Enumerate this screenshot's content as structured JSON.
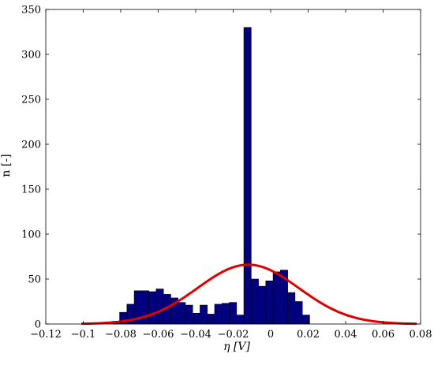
{
  "chart_data": {
    "type": "bar",
    "title": "",
    "xlabel": "η [V]",
    "ylabel": "n [-]",
    "xlim": [
      -0.12,
      0.08
    ],
    "ylim": [
      0,
      350
    ],
    "xticks": [
      "−0.12",
      "−0.1",
      "−0.08",
      "−0.06",
      "−0.04",
      "−0.02",
      "0",
      "0.02",
      "0.04",
      "0.06",
      "0.08"
    ],
    "xtick_values": [
      -0.12,
      -0.1,
      -0.08,
      -0.06,
      -0.04,
      -0.02,
      0,
      0.02,
      0.04,
      0.06,
      0.08
    ],
    "yticks": [
      "0",
      "50",
      "100",
      "150",
      "200",
      "250",
      "300",
      "350"
    ],
    "ytick_values": [
      0,
      50,
      100,
      150,
      200,
      250,
      300,
      350
    ],
    "grid": false,
    "legend": "none",
    "bin_width": 0.0039,
    "bins": [
      {
        "left": -0.0845,
        "count": 3
      },
      {
        "left": -0.0806,
        "count": 13
      },
      {
        "left": -0.0767,
        "count": 22
      },
      {
        "left": -0.0728,
        "count": 37
      },
      {
        "left": -0.0689,
        "count": 37
      },
      {
        "left": -0.065,
        "count": 36
      },
      {
        "left": -0.0611,
        "count": 39
      },
      {
        "left": -0.0572,
        "count": 33
      },
      {
        "left": -0.0533,
        "count": 29
      },
      {
        "left": -0.0494,
        "count": 24
      },
      {
        "left": -0.0455,
        "count": 21
      },
      {
        "left": -0.0416,
        "count": 12
      },
      {
        "left": -0.0377,
        "count": 21
      },
      {
        "left": -0.0338,
        "count": 11
      },
      {
        "left": -0.0299,
        "count": 22
      },
      {
        "left": -0.026,
        "count": 23
      },
      {
        "left": -0.0221,
        "count": 24
      },
      {
        "left": -0.0182,
        "count": 10
      },
      {
        "left": -0.0143,
        "count": 330
      },
      {
        "left": -0.0104,
        "count": 50
      },
      {
        "left": -0.0065,
        "count": 42
      },
      {
        "left": -0.0026,
        "count": 48
      },
      {
        "left": 0.0013,
        "count": 58
      },
      {
        "left": 0.0052,
        "count": 60
      },
      {
        "left": 0.0091,
        "count": 35
      },
      {
        "left": 0.013,
        "count": 25
      },
      {
        "left": 0.0169,
        "count": 10
      }
    ],
    "fit_curve": {
      "type": "gaussian",
      "mean": -0.012,
      "std": 0.027,
      "peak": 66,
      "x_range": [
        -0.101,
        0.078
      ]
    },
    "colors": {
      "bar_fill": "#000080",
      "bar_stroke": "#000000",
      "curve": "#e00000",
      "axis": "#000000"
    }
  }
}
